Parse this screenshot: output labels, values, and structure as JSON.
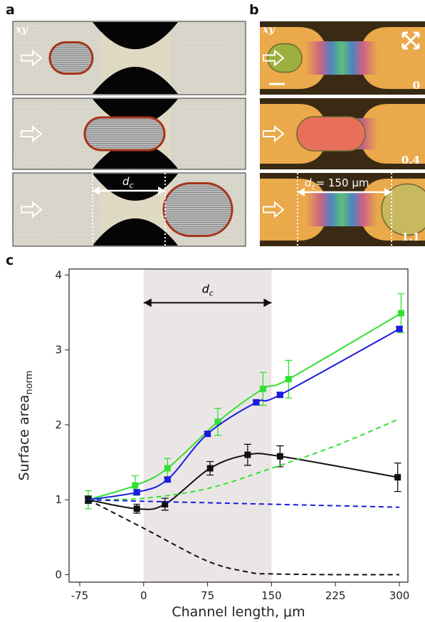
{
  "panels": {
    "a": {
      "letter": "a",
      "frame_label": "xy",
      "dc": {
        "text": "d",
        "sub": "c"
      }
    },
    "b": {
      "letter": "b",
      "frame_label": "xy",
      "dc": {
        "text": "d",
        "sub": "c",
        "rest": "= 150 μm"
      },
      "times": [
        "0",
        "0.4",
        "1.1"
      ]
    }
  },
  "chart_data": {
    "type": "line",
    "letter": "c",
    "x_label": "Channel length, μm",
    "y_label": "Surface area",
    "y_label_sub": "norm",
    "xlim": [
      -87.5,
      310
    ],
    "ylim": [
      -0.1,
      4.08
    ],
    "xticks": [
      -75,
      0,
      75,
      150,
      225,
      300
    ],
    "yticks": [
      0,
      1,
      2,
      3,
      4
    ],
    "shade": [
      0,
      150
    ],
    "shade_color": "#ebe6e6",
    "annotation": {
      "text": "d",
      "sub": "c",
      "x": [
        0,
        150
      ],
      "y": 3.63
    },
    "series": [
      {
        "color": "#33e033",
        "style": "solid",
        "x": [
          -65,
          -10,
          28,
          87,
          140,
          170,
          302
        ],
        "values": [
          1.0,
          1.19,
          1.42,
          2.04,
          2.48,
          2.61,
          3.49
        ],
        "errors": [
          0.12,
          0.13,
          0.13,
          0.18,
          0.22,
          0.25,
          0.26
        ]
      },
      {
        "color": "#1a1ae0",
        "style": "solid",
        "x": [
          -65,
          -8,
          28,
          75,
          132,
          160,
          300
        ],
        "values": [
          1.0,
          1.1,
          1.27,
          1.88,
          2.3,
          2.4,
          3.28
        ],
        "errors": [
          0.03,
          0.03,
          0.03,
          0.03,
          0.03,
          0.03,
          0.03
        ]
      },
      {
        "color": "#111111",
        "style": "solid",
        "x": [
          -65,
          -8,
          25,
          78,
          122,
          160,
          298
        ],
        "values": [
          1.0,
          0.88,
          0.94,
          1.42,
          1.6,
          1.58,
          1.3
        ],
        "errors": [
          0.05,
          0.06,
          0.08,
          0.09,
          0.14,
          0.14,
          0.19
        ]
      },
      {
        "color": "#33e033",
        "style": "dashed",
        "x": [
          -65,
          0,
          75,
          150,
          225,
          300
        ],
        "values": [
          1.0,
          1.02,
          1.15,
          1.42,
          1.72,
          2.08
        ]
      },
      {
        "color": "#1a1ae0",
        "style": "dashed",
        "x": [
          -65,
          0,
          75,
          150,
          225,
          300
        ],
        "values": [
          1.0,
          0.98,
          0.96,
          0.94,
          0.92,
          0.9
        ]
      },
      {
        "color": "#111111",
        "style": "dashed",
        "x": [
          -65,
          0,
          75,
          125,
          150,
          225,
          300
        ],
        "values": [
          1.0,
          0.62,
          0.18,
          0.03,
          0.01,
          0.0,
          0.0
        ]
      }
    ]
  }
}
